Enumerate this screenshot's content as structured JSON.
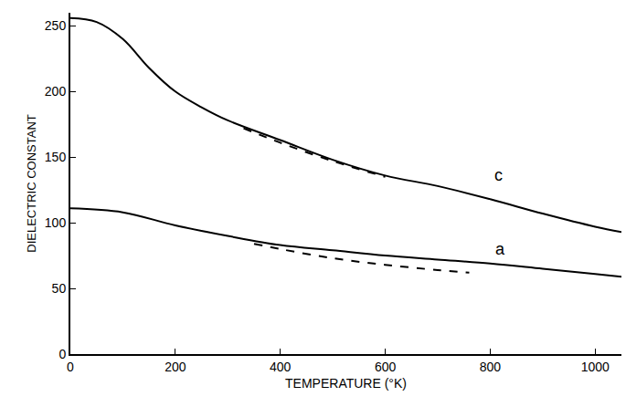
{
  "chart_data": {
    "type": "line",
    "x_label": "TEMPERATURE (°K)",
    "y_label": "DIELECTRIC CONSTANT",
    "xlim": [
      0,
      1050
    ],
    "ylim": [
      0,
      260
    ],
    "xticks": [
      0,
      200,
      400,
      600,
      800,
      1000
    ],
    "yticks": [
      0,
      50,
      100,
      150,
      200,
      250
    ],
    "grid": false,
    "series": [
      {
        "color": "#000000",
        "line_style": "solid",
        "x": [
          0,
          50,
          100,
          150,
          200,
          250,
          300,
          400,
          500,
          600,
          700,
          800,
          900,
          1000,
          1050
        ],
        "values": [
          256,
          253,
          240,
          218,
          200,
          188,
          178,
          163,
          148,
          136,
          128,
          118,
          107,
          97,
          93
        ]
      },
      {
        "color": "#000000",
        "line_style": "dashed",
        "x": [
          330,
          400,
          500,
          600
        ],
        "values": [
          172,
          161,
          147,
          135
        ]
      },
      {
        "color": "#000000",
        "line_style": "solid",
        "x": [
          0,
          100,
          200,
          300,
          400,
          500,
          600,
          700,
          800,
          900,
          1000,
          1050
        ],
        "values": [
          111,
          108,
          98,
          90,
          83,
          79,
          75,
          72,
          69,
          65,
          61,
          59
        ]
      },
      {
        "color": "#000000",
        "line_style": "dashed",
        "x": [
          350,
          400,
          500,
          600,
          700,
          760
        ],
        "values": [
          84,
          80,
          73,
          68,
          64,
          62
        ]
      }
    ],
    "annotations": [
      {
        "text": "c",
        "x": 815,
        "y": 136
      },
      {
        "text": "a",
        "x": 820,
        "y": 80
      }
    ]
  }
}
